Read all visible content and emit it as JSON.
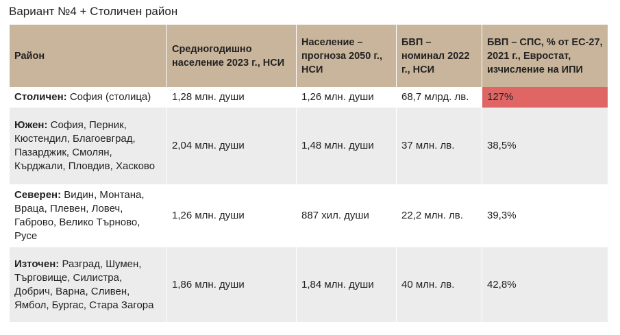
{
  "header": {
    "title": "Вариант №4 + Столичен район"
  },
  "table": {
    "columns": [
      "Район",
      "Средногодишно население 2023 г., НСИ",
      "Население – прогноза 2050 г., НСИ",
      "БВП – номинал 2022 г., НСИ",
      "БВП – СПС, % от ЕС-27, 2021 г., Евростат, изчисление на ИПИ"
    ],
    "rows": [
      [
        {
          "name": "Столичен:",
          "areas": "София (столица)"
        },
        "1,28 млн. души",
        "1,26 млн. души",
        "68,7 млрд. лв.",
        "127%"
      ],
      [
        {
          "name": "Южен:",
          "areas": "София, Перник, Кюстендил, Благоевград, Пазарджик, Смолян, Кърджали, Пловдив, Хасково"
        },
        "2,04 млн. души",
        "1,48 млн. души",
        "37 млн. лв.",
        "38,5%"
      ],
      [
        {
          "name": "Северен:",
          "areas": "Видин, Монтана, Враца, Плевен, Ловеч, Габрово, Велико Търново, Русе"
        },
        "1,26 млн. души",
        "887 хил. души",
        "22,2 млн. лв.",
        "39,3%"
      ],
      [
        {
          "name": "Източен:",
          "areas": "Разград, Шумен, Търговище, Силистра, Добрич, Варна, Сливен, Ямбол, Бургас, Стара Загора"
        },
        "1,86 млн. души",
        "1,84 млн. души",
        "40 млн. лв.",
        "42,8%"
      ]
    ]
  }
}
